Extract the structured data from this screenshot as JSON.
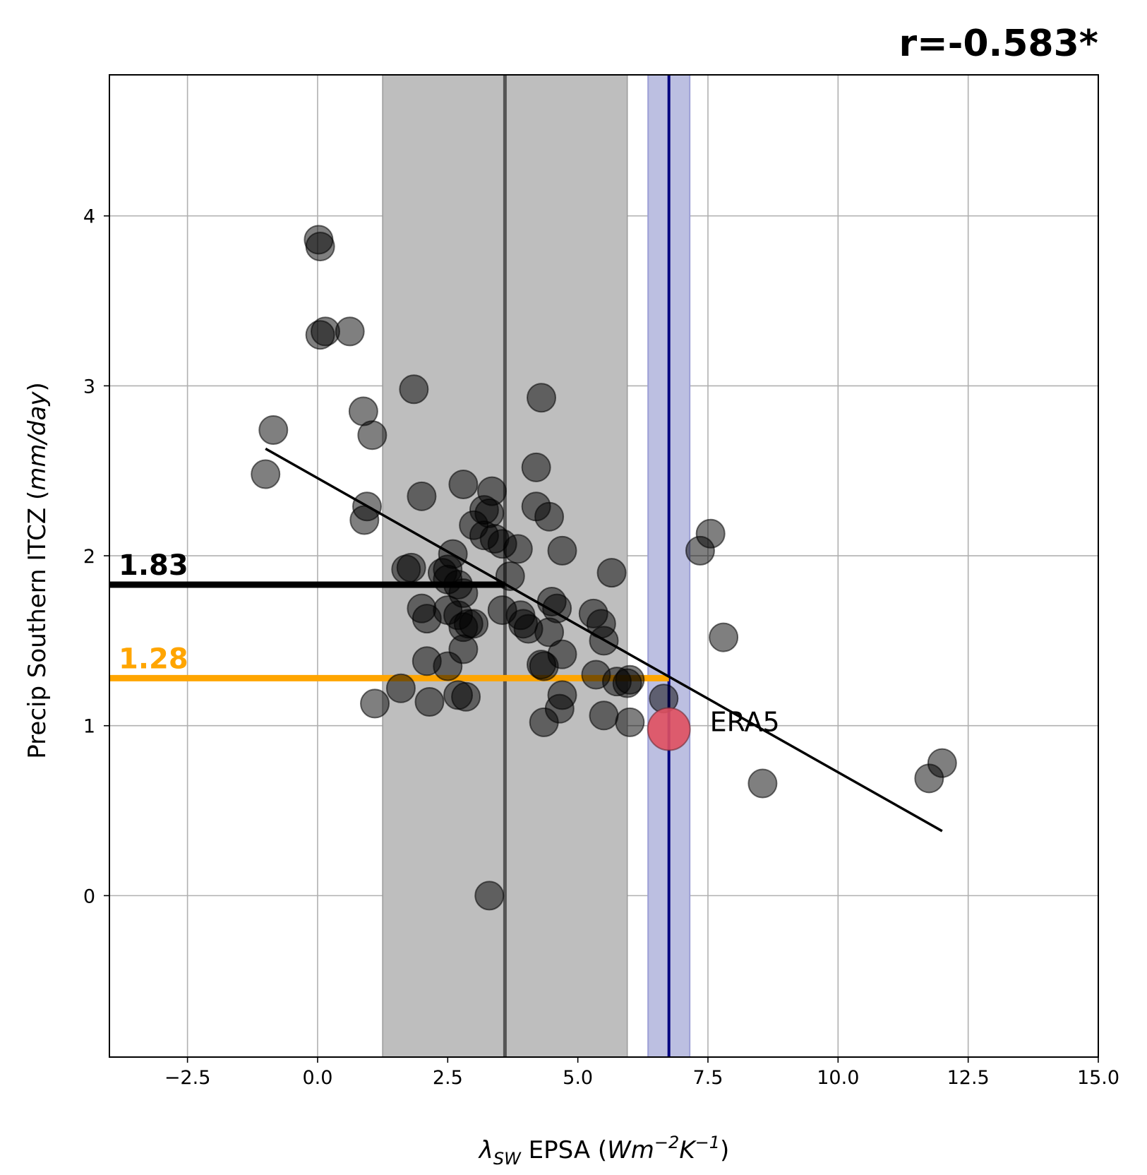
{
  "chart_data": {
    "type": "scatter",
    "title": "",
    "annotation_corr": "r=-0.583*",
    "xlabel": {
      "pre": "λ",
      "sub": "SW",
      "mid": " EPSA (",
      "unit_a": "Wm",
      "sup_a": "−2",
      "unit_b": "K",
      "sup_b": "−1",
      "post": ")"
    },
    "ylabel": {
      "pre": "Precip Southern ITCZ (",
      "unit": "mm/day",
      "post": ")"
    },
    "xlim": [
      -4.0,
      15.0
    ],
    "ylim": [
      -0.95,
      4.83
    ],
    "xticks": [
      -2.5,
      0.0,
      2.5,
      5.0,
      7.5,
      10.0,
      12.5,
      15.0
    ],
    "xtick_labels": [
      "−2.5",
      "0.0",
      "2.5",
      "5.0",
      "7.5",
      "10.0",
      "12.5",
      "15.0"
    ],
    "yticks": [
      0,
      1,
      2,
      3,
      4
    ],
    "ytick_labels": [
      "0",
      "1",
      "2",
      "3",
      "4"
    ],
    "grid": true,
    "colors": {
      "points": "#000000",
      "model_band": "#bebebe",
      "model_line": "#555555",
      "obs_band": "#bcbfe1",
      "obs_line": "#000080",
      "obs_point": "#e05060",
      "black_ref": "#000000",
      "orange_ref": "#ffa500",
      "grid": "#b0b0b0"
    },
    "model_band": {
      "xmin": 1.25,
      "xmax": 5.95,
      "center": 3.6
    },
    "obs_band": {
      "xmin": 6.35,
      "xmax": 7.15,
      "center": 6.75
    },
    "regression_line": {
      "x": [
        -1.0,
        12.0
      ],
      "y": [
        2.63,
        0.38
      ]
    },
    "ref_black": {
      "value": 1.83,
      "label": "1.83",
      "x_end": 3.6
    },
    "ref_orange": {
      "value": 1.28,
      "label": "1.28",
      "x_end": 6.75
    },
    "observation": {
      "name": "ERA5",
      "x": 6.75,
      "y": 0.98
    },
    "series": [
      {
        "x": [
          0.02,
          0.05,
          0.05,
          0.15,
          0.62,
          1.85,
          0.88,
          1.05,
          -0.85,
          -1.0,
          4.3,
          4.2,
          0.95,
          0.9,
          2.0,
          2.8,
          3.35,
          3.2,
          3.3,
          3.0,
          3.4,
          3.2,
          3.55,
          3.85,
          4.2,
          4.45,
          4.7,
          2.6,
          1.8,
          1.7,
          2.5,
          2.4,
          2.5,
          2.7,
          2.8,
          3.7,
          3.9,
          3.55,
          2.0,
          2.1,
          2.5,
          2.7,
          2.9,
          2.8,
          3.0,
          4.5,
          4.45,
          4.6,
          3.95,
          4.05,
          4.35,
          2.8,
          2.1,
          2.5,
          4.7,
          4.3,
          5.3,
          5.45,
          5.5,
          5.65,
          5.35,
          5.75,
          5.95,
          6.0,
          1.6,
          2.15,
          2.7,
          2.85,
          4.7,
          4.65,
          1.1,
          4.35,
          5.5,
          6.0,
          6.65,
          7.55,
          7.35,
          7.8,
          8.55,
          11.75,
          12.0,
          3.3
        ],
        "y": [
          3.86,
          3.82,
          3.3,
          3.32,
          3.32,
          2.98,
          2.85,
          2.71,
          2.74,
          2.48,
          2.93,
          2.52,
          2.29,
          2.21,
          2.35,
          2.42,
          2.38,
          2.27,
          2.25,
          2.18,
          2.1,
          2.12,
          2.07,
          2.04,
          2.29,
          2.23,
          2.03,
          2.01,
          1.93,
          1.92,
          1.92,
          1.9,
          1.86,
          1.83,
          1.78,
          1.88,
          1.65,
          1.68,
          1.69,
          1.63,
          1.68,
          1.65,
          1.6,
          1.58,
          1.6,
          1.73,
          1.55,
          1.69,
          1.6,
          1.57,
          1.35,
          1.45,
          1.38,
          1.35,
          1.42,
          1.36,
          1.66,
          1.6,
          1.5,
          1.9,
          1.3,
          1.26,
          1.25,
          1.27,
          1.22,
          1.14,
          1.18,
          1.17,
          1.18,
          1.1,
          1.13,
          1.02,
          1.06,
          1.02,
          1.16,
          2.13,
          2.03,
          1.52,
          0.66,
          0.69,
          0.78,
          0.0
        ]
      }
    ]
  }
}
